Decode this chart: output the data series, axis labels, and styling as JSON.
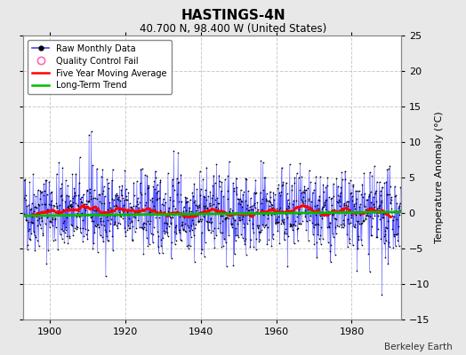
{
  "title": "HASTINGS-4N",
  "subtitle": "40.700 N, 98.400 W (United States)",
  "ylabel": "Temperature Anomaly (°C)",
  "attribution": "Berkeley Earth",
  "xlim": [
    1893,
    1993
  ],
  "ylim": [
    -15,
    25
  ],
  "yticks": [
    -15,
    -10,
    -5,
    0,
    5,
    10,
    15,
    20,
    25
  ],
  "xticks": [
    1900,
    1920,
    1940,
    1960,
    1980
  ],
  "bg_color": "#e8e8e8",
  "plot_bg_color": "#ffffff",
  "grid_color": "#cccccc",
  "raw_line_color": "#4444ff",
  "raw_marker_color": "#000000",
  "ma_color": "#ff0000",
  "trend_color": "#00bb00",
  "qc_color": "#ff69b4",
  "start_year": 1893,
  "end_year": 1993,
  "seed": 42,
  "noise_scale": 2.8,
  "spike_year1": 1911,
  "spike_val1": 11.5,
  "spike_year2": 1988,
  "spike_val2": -11.5,
  "spike_year3": 1934,
  "spike_val3": 8.5,
  "spike_year4": 1963,
  "spike_val4": -7.5,
  "legend_loc": "upper left",
  "title_fontsize": 11,
  "subtitle_fontsize": 8.5,
  "legend_fontsize": 7,
  "ylabel_fontsize": 8,
  "tick_fontsize": 8
}
